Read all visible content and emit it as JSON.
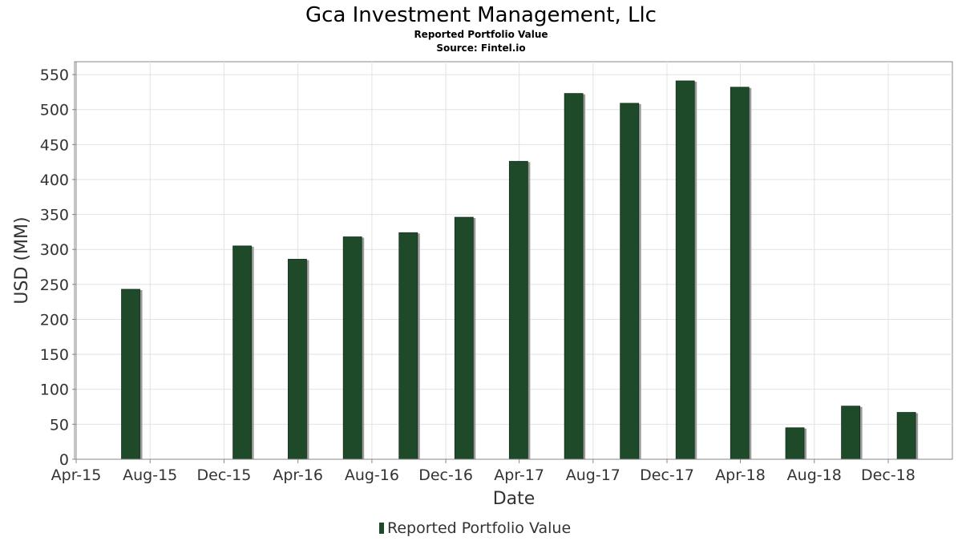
{
  "chart_data": {
    "type": "bar",
    "title": "Gca Investment Management, Llc",
    "subtitle": "Reported Portfolio Value",
    "source": "Source: Fintel.io",
    "xlabel": "Date",
    "ylabel": "USD (MM)",
    "x_ticks": [
      "Apr-15",
      "Aug-15",
      "Dec-15",
      "Apr-16",
      "Aug-16",
      "Dec-16",
      "Apr-17",
      "Aug-17",
      "Dec-17",
      "Apr-18",
      "Aug-18",
      "Dec-18"
    ],
    "x_tick_dates": [
      "2015-04-01",
      "2015-08-01",
      "2015-12-01",
      "2016-04-01",
      "2016-08-01",
      "2016-12-01",
      "2017-04-01",
      "2017-08-01",
      "2017-12-01",
      "2018-04-01",
      "2018-08-01",
      "2018-12-01"
    ],
    "xlim": [
      "2015-04-01",
      "2019-03-01"
    ],
    "ylim": [
      0,
      565
    ],
    "y_ticks": [
      0,
      50,
      100,
      150,
      200,
      250,
      300,
      350,
      400,
      450,
      500,
      550
    ],
    "grid": true,
    "legend_position": "bottom-center",
    "series": [
      {
        "name": "Reported Portfolio Value",
        "color": "#1f4a2a",
        "x": [
          "2015-06-30",
          "2015-12-31",
          "2016-03-31",
          "2016-06-30",
          "2016-09-30",
          "2016-12-31",
          "2017-03-31",
          "2017-06-30",
          "2017-09-30",
          "2017-12-31",
          "2018-03-31",
          "2018-06-30",
          "2018-09-30",
          "2018-12-31"
        ],
        "values": [
          243,
          305,
          286,
          318,
          324,
          346,
          426,
          523,
          509,
          541,
          532,
          45,
          76,
          67
        ]
      }
    ]
  }
}
